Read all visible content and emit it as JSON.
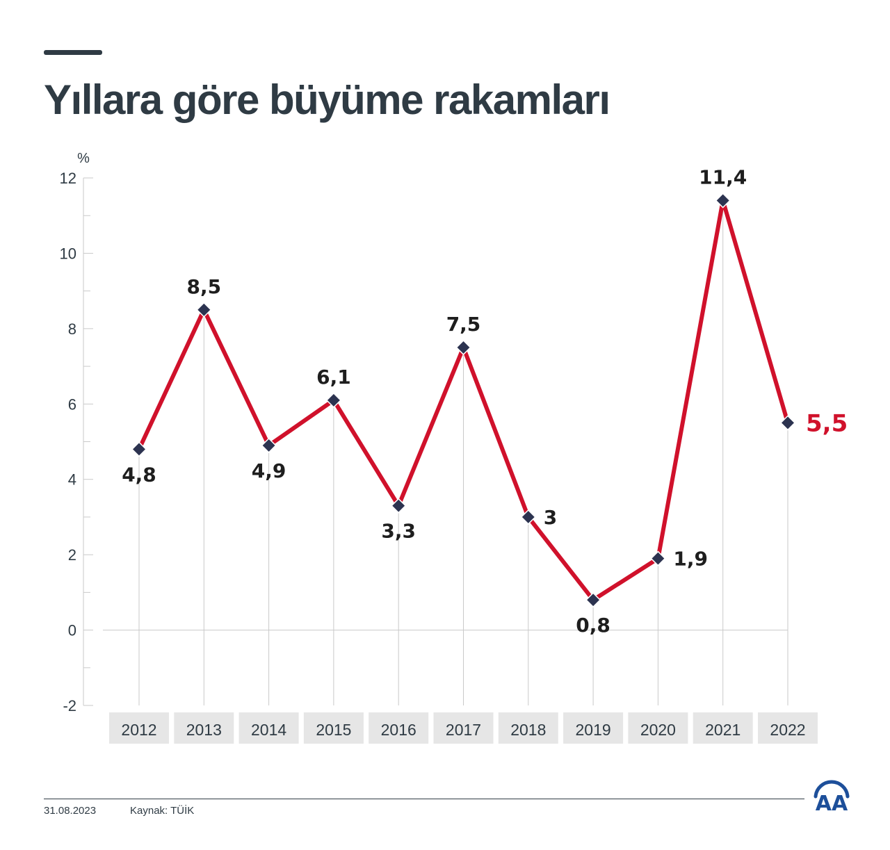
{
  "header": {
    "title": "Yıllara göre büyüme rakamları"
  },
  "footer": {
    "date": "31.08.2023",
    "source": "Kaynak: TÜİK"
  },
  "brand": {
    "logo_text": "AA",
    "logo_color": "#1d4f9a"
  },
  "colors": {
    "line": "#d0112b",
    "marker": "#2c3350",
    "text": "#2f3b44",
    "label_highlight": "#d0112b"
  },
  "chart_data": {
    "type": "line",
    "title": "Yıllara göre büyüme rakamları",
    "ylabel": "%",
    "xlabel": "",
    "ylim": [
      -2,
      12
    ],
    "yticks": [
      12,
      10,
      8,
      6,
      4,
      2,
      0,
      -2
    ],
    "categories": [
      "2012",
      "2013",
      "2014",
      "2015",
      "2016",
      "2017",
      "2018",
      "2019",
      "2020",
      "2021",
      "2022"
    ],
    "values": [
      4.8,
      8.5,
      4.9,
      6.1,
      3.3,
      7.5,
      3,
      0.8,
      1.9,
      11.4,
      5.5
    ],
    "labels": [
      "4,8",
      "8,5",
      "4,9",
      "6,1",
      "3,3",
      "7,5",
      "3",
      "0,8",
      "1,9",
      "11,4",
      "5,5"
    ],
    "grid": "vertical"
  }
}
